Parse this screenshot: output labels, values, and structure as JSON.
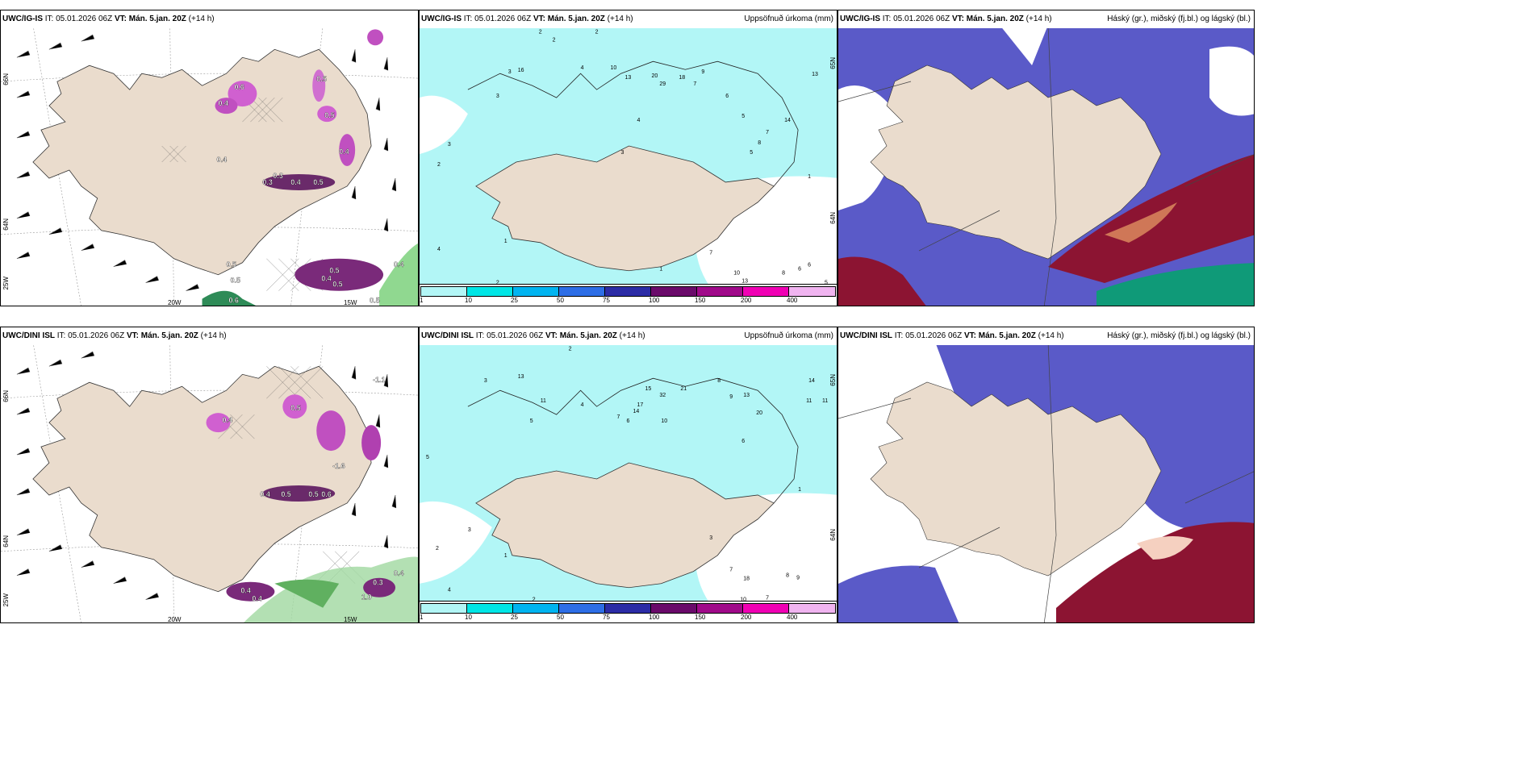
{
  "panels": {
    "top": {
      "model": "UWC/IG-IS",
      "it": "IT: 05.01.2026 06Z",
      "vt_label": "VT:",
      "vt": "Mán. 5.jan. 20Z",
      "lead": "(+14 h)"
    },
    "bottom": {
      "model": "UWC/DINI ISL",
      "it": "IT: 05.01.2026 06Z",
      "vt_label": "VT:",
      "vt": "Mán. 5.jan. 20Z",
      "lead": "(+14 h)"
    }
  },
  "precip_title": "Uppsöfnuð úrkoma (mm)",
  "cloud_title": "Háský (gr.), miðský (fj.bl.) og lágský (bl.)",
  "axis": {
    "lat66": "66N",
    "lat64": "64N",
    "lon25": "25W",
    "lon20": "20W",
    "lon15": "15W",
    "lat65": "65N"
  },
  "colorbar": {
    "ticks": [
      "1",
      "10",
      "25",
      "50",
      "75",
      "100",
      "150",
      "200",
      "400"
    ],
    "colors": [
      "#b2f6f6",
      "#00e6e6",
      "#00b4f0",
      "#2e6ee6",
      "#2c2ca6",
      "#6a0a6a",
      "#a00a8a",
      "#f000b4",
      "#f0b4f0"
    ]
  },
  "colors": {
    "land": "#eadccd",
    "sea_precip": "#b2f6f6",
    "purple_cloud": "#5a5ac8",
    "dark_cloud": "#8c1432",
    "green_cloud": "#0f9a78"
  },
  "labels": {
    "temp_top": [
      "0.6",
      "0.5",
      "0.4",
      "0.5",
      "0.3",
      "0.4",
      "0.5",
      "0.3",
      "0.4",
      "0.5",
      "0.5",
      "0.6",
      "0.4",
      "0.4",
      "0.5",
      "0.4",
      "0.5",
      "0.5"
    ],
    "temp_bottom": [
      "-1.1",
      "-1.6",
      "0.4",
      "0.5",
      "0.5",
      "0.6",
      "0.4",
      "0.4",
      "0.3",
      "0.4",
      "1.0",
      "0.4",
      "0.5"
    ],
    "precip_top": [
      "2",
      "2",
      "2",
      "3",
      "3",
      "4",
      "10",
      "13",
      "20",
      "29",
      "18",
      "16",
      "9",
      "7",
      "6",
      "5",
      "4",
      "3",
      "13",
      "14",
      "8",
      "7",
      "6",
      "5",
      "4",
      "3",
      "2",
      "1",
      "1",
      "1",
      "2",
      "7",
      "10",
      "13",
      "6",
      "8",
      "5"
    ],
    "precip_bottom": [
      "2",
      "3",
      "13",
      "11",
      "4",
      "5",
      "7",
      "6",
      "14",
      "17",
      "15",
      "32",
      "21",
      "10",
      "13",
      "20",
      "8",
      "9",
      "6",
      "5",
      "3",
      "2",
      "1",
      "4",
      "18",
      "10",
      "7",
      "8",
      "9",
      "14",
      "11",
      "11",
      "7",
      "3",
      "2",
      "1"
    ]
  }
}
